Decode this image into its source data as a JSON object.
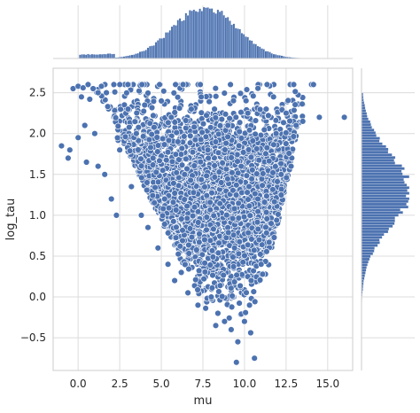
{
  "chart_data": {
    "type": "scatter",
    "subtype": "jointplot",
    "xlabel": "mu",
    "ylabel": "log_tau",
    "xlim": [
      -1.5,
      16.5
    ],
    "ylim": [
      -0.9,
      2.8
    ],
    "x_ticks": [
      0.0,
      2.5,
      5.0,
      7.5,
      10.0,
      12.5,
      15.0
    ],
    "y_ticks": [
      -0.5,
      0.0,
      0.5,
      1.0,
      1.5,
      2.0,
      2.5
    ],
    "x_tick_labels": [
      "0.0",
      "2.5",
      "5.0",
      "7.5",
      "10.0",
      "12.5",
      "15.0"
    ],
    "y_tick_labels": [
      "−0.5",
      "0.0",
      "0.5",
      "1.0",
      "1.5",
      "2.0",
      "2.5"
    ],
    "grid": true,
    "point_color": "#4c72b0",
    "marginal_x": {
      "type": "histogram",
      "peak_mu": 7.6,
      "spread": 1.9
    },
    "marginal_y": {
      "type": "histogram",
      "peak_log_tau": 1.3,
      "spread": 0.45
    },
    "points": [
      [
        -0.3,
        2.55
      ],
      [
        0.0,
        2.58
      ],
      [
        0.3,
        2.56
      ],
      [
        0.6,
        2.6
      ],
      [
        0.9,
        2.55
      ],
      [
        1.2,
        2.5
      ],
      [
        1.4,
        2.58
      ],
      [
        1.7,
        2.5
      ],
      [
        0.2,
        2.45
      ],
      [
        0.7,
        2.42
      ],
      [
        -1.0,
        1.85
      ],
      [
        -0.5,
        1.8
      ],
      [
        -0.6,
        1.7
      ],
      [
        0.0,
        1.95
      ],
      [
        0.4,
        2.1
      ],
      [
        0.5,
        1.65
      ],
      [
        1.0,
        2.0
      ],
      [
        1.2,
        1.6
      ],
      [
        1.6,
        1.5
      ],
      [
        2.0,
        1.2
      ],
      [
        2.3,
        1.0
      ],
      [
        2.5,
        1.8
      ],
      [
        3.0,
        2.3
      ],
      [
        3.2,
        1.35
      ],
      [
        3.5,
        2.0
      ],
      [
        3.8,
        1.0
      ],
      [
        4.0,
        2.35
      ],
      [
        4.2,
        0.85
      ],
      [
        4.5,
        1.7
      ],
      [
        4.8,
        0.6
      ],
      [
        5.0,
        2.4
      ],
      [
        5.2,
        1.2
      ],
      [
        5.4,
        0.4
      ],
      [
        5.6,
        2.2
      ],
      [
        5.8,
        0.2
      ],
      [
        6.0,
        1.9
      ],
      [
        6.2,
        0.3
      ],
      [
        6.4,
        1.5
      ],
      [
        6.6,
        0.05
      ],
      [
        6.8,
        2.3
      ],
      [
        7.0,
        1.1
      ],
      [
        7.2,
        -0.1
      ],
      [
        7.4,
        2.45
      ],
      [
        7.6,
        0.7
      ],
      [
        7.8,
        1.8
      ],
      [
        8.0,
        0.0
      ],
      [
        8.2,
        2.3
      ],
      [
        8.4,
        -0.2
      ],
      [
        8.6,
        1.4
      ],
      [
        8.8,
        -0.3
      ],
      [
        9.0,
        2.1
      ],
      [
        9.2,
        -0.4
      ],
      [
        9.4,
        0.6
      ],
      [
        9.6,
        -0.55
      ],
      [
        9.8,
        1.6
      ],
      [
        10.0,
        -0.3
      ],
      [
        10.2,
        2.25
      ],
      [
        10.4,
        0.2
      ],
      [
        10.6,
        -0.75
      ],
      [
        10.8,
        1.2
      ],
      [
        11.0,
        0.4
      ],
      [
        11.3,
        2.3
      ],
      [
        11.6,
        0.9
      ],
      [
        11.9,
        2.0
      ],
      [
        12.2,
        1.5
      ],
      [
        12.5,
        2.25
      ],
      [
        12.8,
        1.6
      ],
      [
        13.1,
        2.1
      ],
      [
        13.5,
        2.15
      ],
      [
        14.5,
        2.2
      ],
      [
        16.0,
        2.2
      ]
    ]
  }
}
